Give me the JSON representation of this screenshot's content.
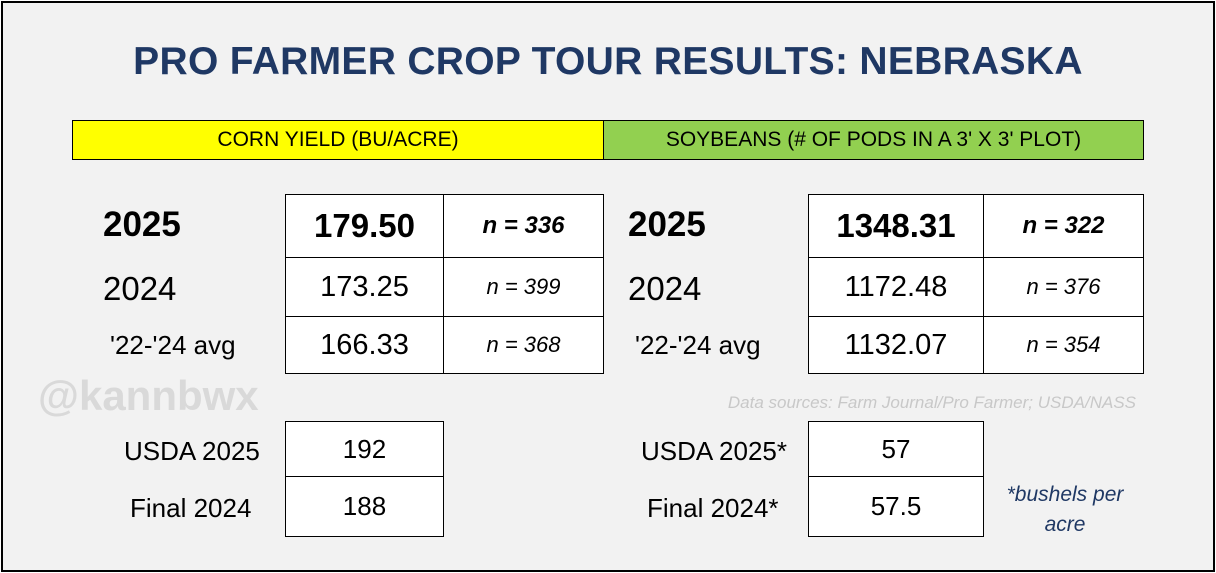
{
  "title": "PRO FARMER CROP TOUR RESULTS: NEBRASKA",
  "corn": {
    "header": "CORN YIELD (BU/ACRE)",
    "rows": [
      {
        "label": "2025",
        "value": "179.50",
        "n": "n = 336"
      },
      {
        "label": "2024",
        "value": "173.25",
        "n": "n = 399"
      },
      {
        "label": "'22-'24 avg",
        "value": "166.33",
        "n": "n = 368"
      }
    ],
    "usda": [
      {
        "label": "USDA 2025",
        "value": "192"
      },
      {
        "label": "Final 2024",
        "value": "188"
      }
    ]
  },
  "soy": {
    "header": "SOYBEANS (# OF PODS IN A 3' X 3' PLOT)",
    "rows": [
      {
        "label": "2025",
        "value": "1348.31",
        "n": "n =  322"
      },
      {
        "label": "2024",
        "value": "1172.48",
        "n": "n =  376"
      },
      {
        "label": "'22-'24 avg",
        "value": "1132.07",
        "n": "n = 354"
      }
    ],
    "usda": [
      {
        "label": "USDA 2025*",
        "value": "57"
      },
      {
        "label": "Final 2024*",
        "value": "57.5"
      }
    ],
    "footnote": "*bushels per acre"
  },
  "watermark": "@kannbwx",
  "source": "Data sources: Farm Journal/Pro Farmer; USDA/NASS"
}
